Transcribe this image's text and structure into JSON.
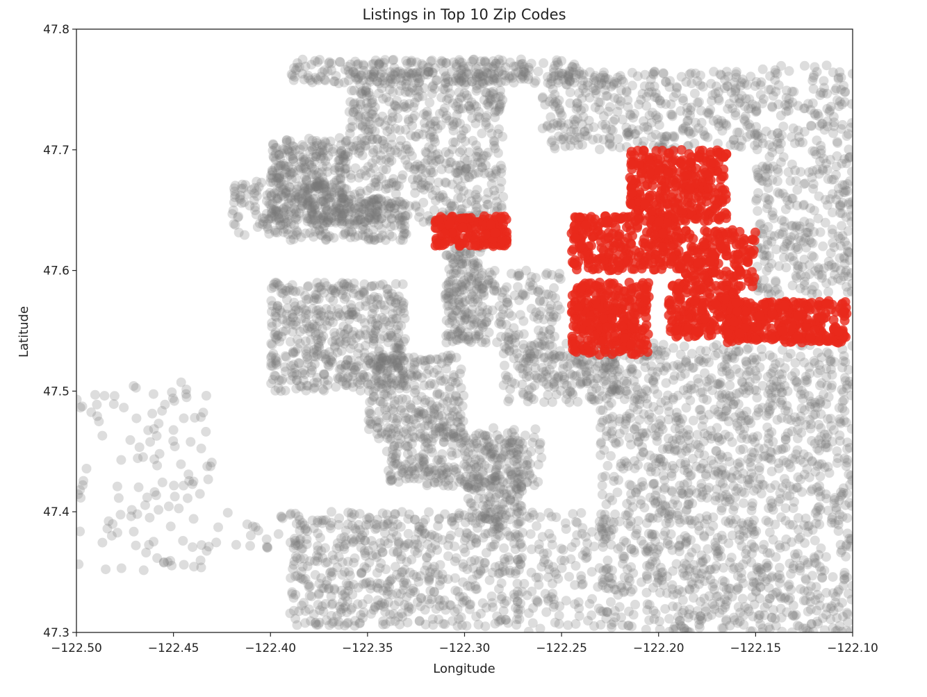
{
  "chart_data": {
    "type": "scatter",
    "title": "Listings in Top 10 Zip Codes",
    "xlabel": "Longitude",
    "ylabel": "Latitude",
    "xlim": [
      -122.5,
      -122.1
    ],
    "ylim": [
      47.3,
      47.8
    ],
    "grid": false,
    "xticks": [
      -122.5,
      -122.45,
      -122.4,
      -122.35,
      -122.3,
      -122.25,
      -122.2,
      -122.15,
      -122.1
    ],
    "xtick_labels": [
      "−122.50",
      "−122.45",
      "−122.40",
      "−122.35",
      "−122.30",
      "−122.25",
      "−122.20",
      "−122.15",
      "−122.10"
    ],
    "yticks": [
      47.3,
      47.4,
      47.5,
      47.6,
      47.7,
      47.8
    ],
    "ytick_labels": [
      "47.3",
      "47.4",
      "47.5",
      "47.6",
      "47.7",
      "47.8"
    ],
    "series": [
      {
        "color": "#777777",
        "opacity": 0.25,
        "regions": [
          {
            "lon": [
              -122.39,
              -122.24
            ],
            "lat": [
              47.755,
              47.775
            ],
            "n": 260
          },
          {
            "lon": [
              -122.4,
              -122.36
            ],
            "lat": [
              47.64,
              47.71
            ],
            "n": 320
          },
          {
            "lon": [
              -122.36,
              -122.28
            ],
            "lat": [
              47.64,
              47.765
            ],
            "n": 620
          },
          {
            "lon": [
              -122.42,
              -122.37
            ],
            "lat": [
              47.625,
              47.675
            ],
            "n": 170
          },
          {
            "lon": [
              -122.37,
              -122.33
            ],
            "lat": [
              47.625,
              47.66
            ],
            "n": 140
          },
          {
            "lon": [
              -122.26,
              -122.15
            ],
            "lat": [
              47.7,
              47.765
            ],
            "n": 380
          },
          {
            "lon": [
              -122.15,
              -122.1
            ],
            "lat": [
              47.66,
              47.77
            ],
            "n": 220
          },
          {
            "lon": [
              -122.31,
              -122.29
            ],
            "lat": [
              47.54,
              47.62
            ],
            "n": 190
          },
          {
            "lon": [
              -122.29,
              -122.25
            ],
            "lat": [
              47.54,
              47.6
            ],
            "n": 120
          },
          {
            "lon": [
              -122.4,
              -122.33
            ],
            "lat": [
              47.5,
              47.59
            ],
            "n": 500
          },
          {
            "lon": [
              -122.35,
              -122.3
            ],
            "lat": [
              47.46,
              47.53
            ],
            "n": 280
          },
          {
            "lon": [
              -122.34,
              -122.26
            ],
            "lat": [
              47.42,
              47.47
            ],
            "n": 260
          },
          {
            "lon": [
              -122.3,
              -122.27
            ],
            "lat": [
              47.39,
              47.46
            ],
            "n": 160
          },
          {
            "lon": [
              -122.28,
              -122.22
            ],
            "lat": [
              47.49,
              47.54
            ],
            "n": 220
          },
          {
            "lon": [
              -122.39,
              -122.27
            ],
            "lat": [
              47.305,
              47.4
            ],
            "n": 620
          },
          {
            "lon": [
              -122.23,
              -122.1
            ],
            "lat": [
              47.3,
              47.54
            ],
            "n": 1500
          },
          {
            "lon": [
              -122.15,
              -122.1
            ],
            "lat": [
              47.58,
              47.66
            ],
            "n": 200
          },
          {
            "lon": [
              -122.27,
              -122.23
            ],
            "lat": [
              47.3,
              47.4
            ],
            "n": 110
          },
          {
            "lon": [
              -122.5,
              -122.43
            ],
            "lat": [
              47.35,
              47.51
            ],
            "n": 120
          },
          {
            "lon": [
              -122.43,
              -122.39
            ],
            "lat": [
              47.37,
              47.4
            ],
            "n": 18
          }
        ]
      },
      {
        "color": "#e8291c",
        "opacity": 0.8,
        "regions": [
          {
            "lon": [
              -122.315,
              -122.278
            ],
            "lat": [
              47.62,
              47.645
            ],
            "n": 180
          },
          {
            "lon": [
              -122.215,
              -122.165
            ],
            "lat": [
              47.64,
              47.7
            ],
            "n": 340
          },
          {
            "lon": [
              -122.245,
              -122.19
            ],
            "lat": [
              47.6,
              47.645
            ],
            "n": 260
          },
          {
            "lon": [
              -122.195,
              -122.15
            ],
            "lat": [
              47.585,
              47.635
            ],
            "n": 200
          },
          {
            "lon": [
              -122.245,
              -122.205
            ],
            "lat": [
              47.53,
              47.59
            ],
            "n": 320
          },
          {
            "lon": [
              -122.195,
              -122.16
            ],
            "lat": [
              47.545,
              47.585
            ],
            "n": 180
          },
          {
            "lon": [
              -122.165,
              -122.103
            ],
            "lat": [
              47.54,
              47.575
            ],
            "n": 340
          }
        ]
      }
    ]
  }
}
